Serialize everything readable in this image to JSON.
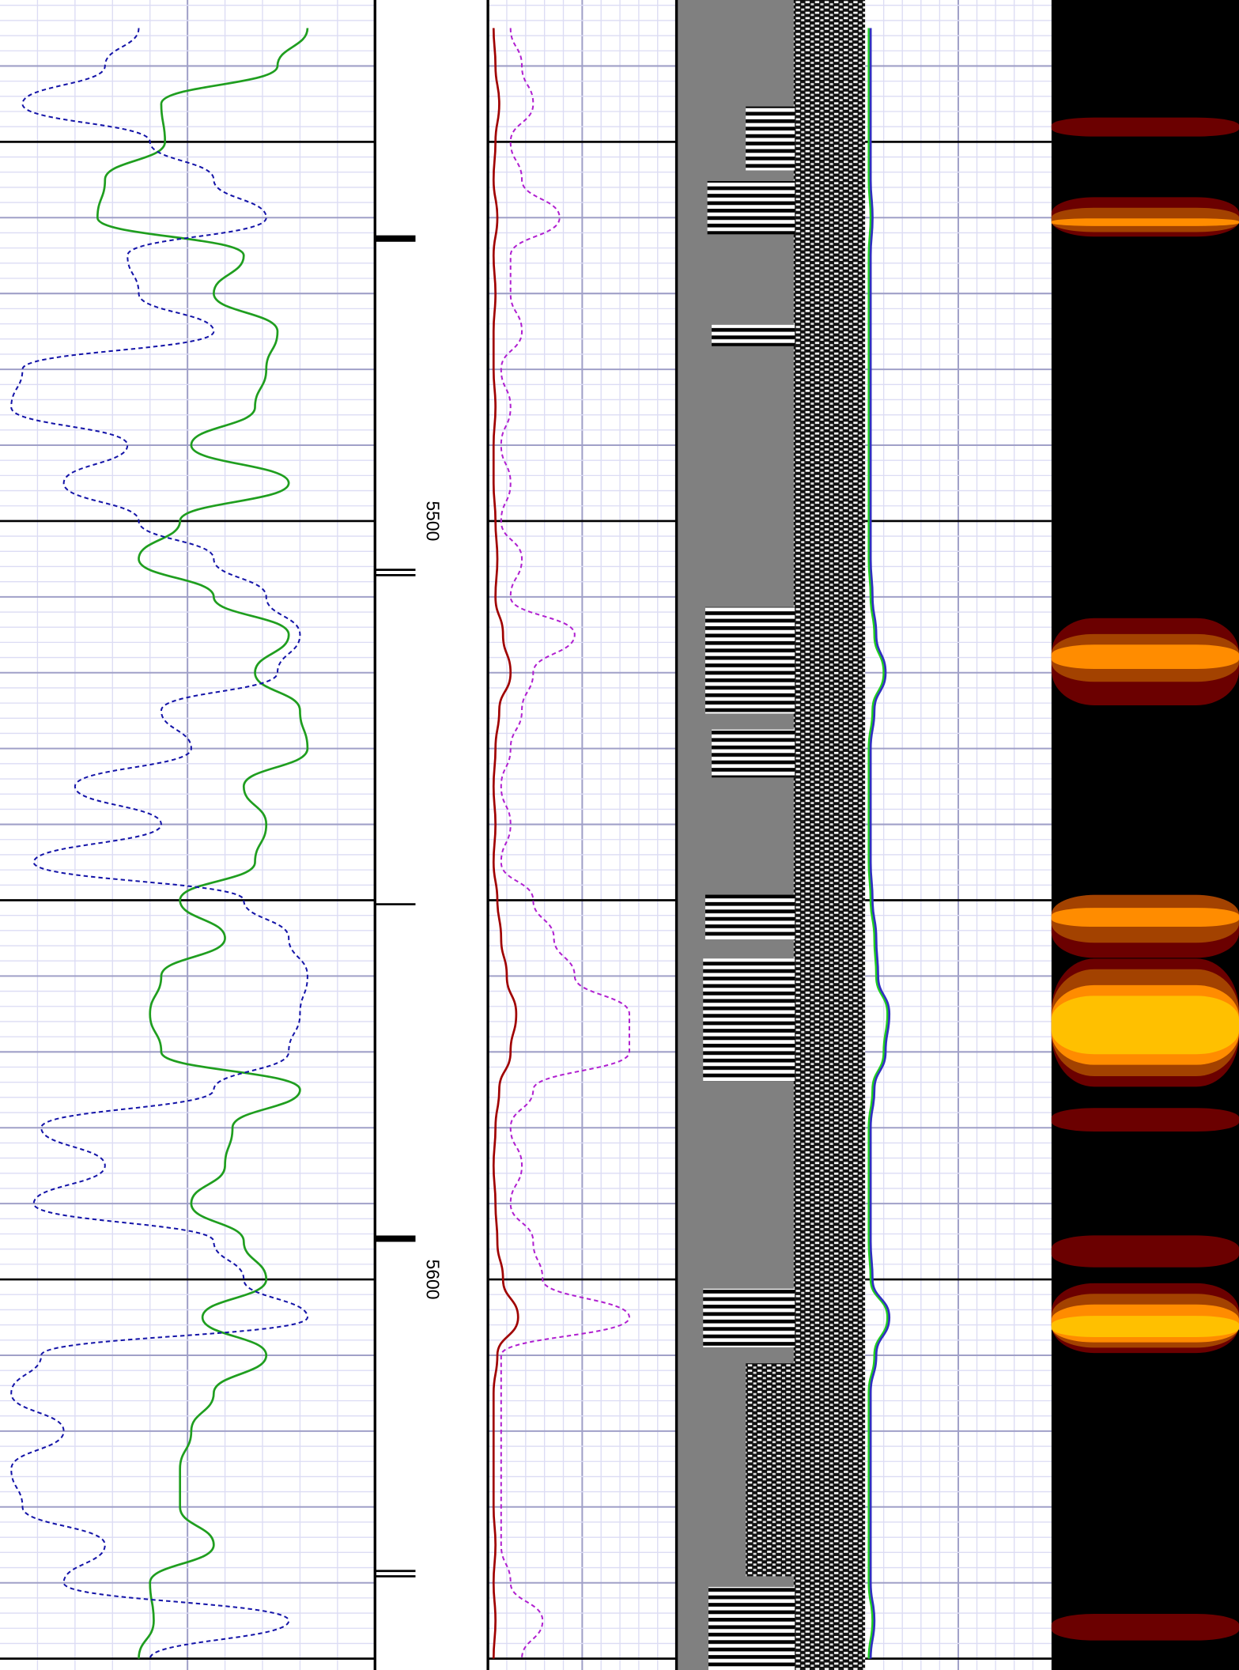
{
  "chart_data": {
    "type": "well-log",
    "ylim": [
      5431.3,
      5651.5
    ],
    "depth_labels": [
      5500,
      5600
    ],
    "major_ticks": [
      5450,
      5500,
      5550,
      5600,
      5650
    ],
    "grid_step": 10,
    "minor_step": 2,
    "depth": [
      5435,
      5440,
      5445,
      5450,
      5455,
      5460,
      5465,
      5470,
      5475,
      5480,
      5485,
      5490,
      5495,
      5500,
      5505,
      5510,
      5515,
      5520,
      5525,
      5530,
      5535,
      5540,
      5545,
      5550,
      5555,
      5560,
      5565,
      5570,
      5575,
      5580,
      5585,
      5590,
      5595,
      5600,
      5605,
      5610,
      5615,
      5620,
      5625,
      5630,
      5635,
      5640,
      5645,
      5650
    ],
    "tracks": [
      {
        "xlim": [
          0,
          100
        ],
        "series": [
          {
            "color": "#1f9e1f",
            "style": "solid",
            "values": [
              82,
              74,
              43,
              44,
              28,
              26,
              65,
              57,
              74,
              71,
              68,
              51,
              77,
              48,
              37,
              57,
              77,
              68,
              80,
              82,
              65,
              71,
              68,
              48,
              60,
              43,
              40,
              43,
              80,
              62,
              60,
              51,
              65,
              71,
              54,
              71,
              57,
              51,
              48,
              48,
              57,
              40,
              41,
              37
            ]
          },
          {
            "color": "#1414a8",
            "style": "dashed",
            "values": [
              37,
              28,
              6,
              40,
              57,
              71,
              34,
              37,
              57,
              6,
              3,
              34,
              17,
              37,
              57,
              71,
              80,
              74,
              43,
              51,
              20,
              43,
              9,
              65,
              77,
              82,
              80,
              77,
              57,
              11,
              28,
              9,
              57,
              65,
              82,
              11,
              3,
              17,
              3,
              6,
              28,
              17,
              77,
              40
            ]
          }
        ]
      },
      {
        "xlim": [
          0,
          100
        ],
        "series": [
          {
            "color": "#a00000",
            "style": "solid",
            "values": [
              3,
              4,
              6,
              4,
              3,
              5,
              3,
              4,
              3,
              3,
              4,
              3,
              3,
              4,
              5,
              4,
              8,
              12,
              6,
              4,
              3,
              4,
              3,
              5,
              7,
              10,
              15,
              12,
              6,
              4,
              3,
              4,
              5,
              8,
              16,
              5,
              3,
              3,
              3,
              3,
              4,
              3,
              4,
              3
            ]
          },
          {
            "color": "#b020d0",
            "style": "dashed",
            "values": [
              12,
              18,
              24,
              12,
              18,
              38,
              12,
              12,
              18,
              7,
              12,
              7,
              12,
              7,
              18,
              12,
              46,
              24,
              18,
              12,
              7,
              12,
              7,
              24,
              35,
              46,
              75,
              75,
              24,
              12,
              18,
              12,
              24,
              29,
              75,
              7,
              7,
              7,
              7,
              7,
              7,
              12,
              29,
              18
            ]
          }
        ]
      },
      {
        "xlim": [
          0,
          100
        ],
        "series": [
          {
            "color": "#20d020",
            "style": "solid",
            "values": [
              2,
              2,
              2,
              2,
              2,
              3,
              2,
              2,
              2,
              2,
              2,
              2,
              2,
              2,
              2,
              3,
              5,
              10,
              4,
              2,
              2,
              2,
              2,
              3,
              5,
              6,
              12,
              10,
              4,
              2,
              2,
              2,
              2,
              3,
              12,
              5,
              2,
              2,
              2,
              2,
              2,
              2,
              4,
              2
            ]
          },
          {
            "color": "#3030c0",
            "style": "solid",
            "values": [
              3,
              3,
              3,
              3,
              3,
              4,
              3,
              3,
              3,
              3,
              3,
              3,
              3,
              3,
              3,
              4,
              6,
              11,
              5,
              3,
              3,
              3,
              3,
              4,
              6,
              7,
              13,
              11,
              5,
              3,
              3,
              3,
              3,
              4,
              13,
              6,
              3,
              3,
              3,
              3,
              3,
              3,
              5,
              3
            ]
          }
        ]
      }
    ],
    "heatmap": {
      "colors": [
        "#000000",
        "#6b0000",
        "#a34200",
        "#ff8c00",
        "#ffc000"
      ],
      "bands": [
        {
          "top": 5446.8,
          "bottom": 5449.3,
          "level": 1
        },
        {
          "top": 5457.3,
          "bottom": 5462.5,
          "level": 1
        },
        {
          "top": 5458.7,
          "bottom": 5461.9,
          "level": 2
        },
        {
          "top": 5460.1,
          "bottom": 5461.1,
          "level": 3
        },
        {
          "top": 5512.8,
          "bottom": 5524.3,
          "level": 1
        },
        {
          "top": 5514.9,
          "bottom": 5521.2,
          "level": 2
        },
        {
          "top": 5516.3,
          "bottom": 5519.5,
          "level": 3
        },
        {
          "top": 5549.3,
          "bottom": 5557.6,
          "level": 1
        },
        {
          "top": 5549.3,
          "bottom": 5555.6,
          "level": 2
        },
        {
          "top": 5551.0,
          "bottom": 5553.5,
          "level": 3
        },
        {
          "top": 5557.7,
          "bottom": 5574.6,
          "level": 1
        },
        {
          "top": 5559.1,
          "bottom": 5573.2,
          "level": 2
        },
        {
          "top": 5561.2,
          "bottom": 5571.7,
          "level": 3
        },
        {
          "top": 5562.6,
          "bottom": 5570.3,
          "level": 4
        },
        {
          "top": 5577.4,
          "bottom": 5580.5,
          "level": 1
        },
        {
          "top": 5594.2,
          "bottom": 5598.4,
          "level": 1
        },
        {
          "top": 5600.5,
          "bottom": 5609.7,
          "level": 1
        },
        {
          "top": 5601.9,
          "bottom": 5609.0,
          "level": 2
        },
        {
          "top": 5603.3,
          "bottom": 5608.3,
          "level": 3
        },
        {
          "top": 5604.8,
          "bottom": 5607.6,
          "level": 4
        },
        {
          "top": 5644.1,
          "bottom": 5647.6,
          "level": 1
        }
      ]
    }
  }
}
